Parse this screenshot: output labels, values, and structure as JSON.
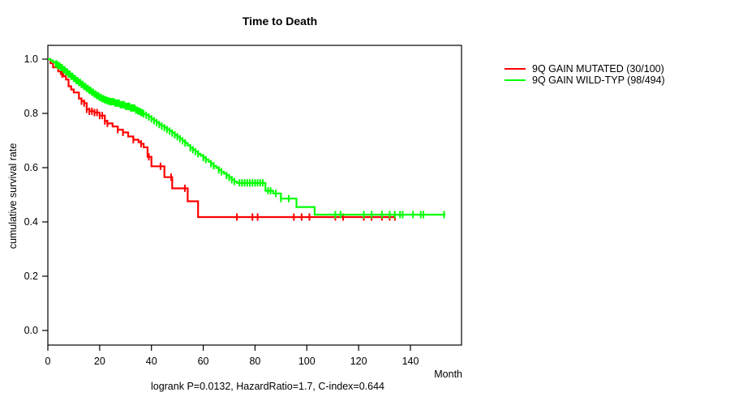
{
  "figure": {
    "title": "Time to Death",
    "footer": "logrank P=0.0132, HazardRatio=1.7, C-index=0.644"
  },
  "chart_data": {
    "type": "line",
    "subtype": "kaplan-meier-step",
    "title": "Time to Death",
    "xlabel": "Month",
    "ylabel": "cumulative survival rate",
    "xlim": [
      0,
      160
    ],
    "ylim": [
      0,
      1.05
    ],
    "x_ticks": [
      0,
      20,
      40,
      60,
      80,
      100,
      120,
      140
    ],
    "y_ticks": [
      1.0,
      0.8,
      0.6,
      0.4,
      0.2,
      0.0
    ],
    "grid": false,
    "legend_position": "right-outside",
    "annotation": "logrank P=0.0132, HazardRatio=1.7, C-index=0.644",
    "axis_color": "#000000",
    "series": [
      {
        "name": "9Q GAIN MUTATED (30/100)",
        "color": "#ff0000",
        "steps": [
          [
            0,
            1.0
          ],
          [
            1,
            0.985
          ],
          [
            2,
            0.97
          ],
          [
            4,
            0.955
          ],
          [
            5,
            0.945
          ],
          [
            6,
            0.937
          ],
          [
            7,
            0.925
          ],
          [
            8,
            0.9
          ],
          [
            9,
            0.888
          ],
          [
            10,
            0.877
          ],
          [
            12,
            0.855
          ],
          [
            13,
            0.845
          ],
          [
            14,
            0.838
          ],
          [
            15,
            0.815
          ],
          [
            16,
            0.808
          ],
          [
            18,
            0.803
          ],
          [
            20,
            0.792
          ],
          [
            22,
            0.772
          ],
          [
            23,
            0.763
          ],
          [
            25,
            0.752
          ],
          [
            27,
            0.74
          ],
          [
            29,
            0.73
          ],
          [
            31,
            0.715
          ],
          [
            33,
            0.703
          ],
          [
            35,
            0.694
          ],
          [
            36,
            0.688
          ],
          [
            37,
            0.675
          ],
          [
            38.5,
            0.64
          ],
          [
            40,
            0.605
          ],
          [
            45,
            0.565
          ],
          [
            48,
            0.524
          ],
          [
            54,
            0.476
          ],
          [
            58,
            0.418
          ]
        ],
        "end_time": 134,
        "censor_times": [
          5.5,
          13,
          14,
          15,
          16,
          17,
          18,
          19,
          20,
          21,
          22,
          23,
          27,
          29,
          33,
          36,
          39,
          43.5,
          47.6,
          52.9,
          73,
          79,
          81,
          95,
          98,
          101,
          111,
          114,
          122,
          125,
          129,
          132,
          134
        ]
      },
      {
        "name": "9Q GAIN WILD-TYP (98/494)",
        "color": "#00ff00",
        "steps": [
          [
            0,
            1.0
          ],
          [
            1,
            0.995
          ],
          [
            2,
            0.988
          ],
          [
            3,
            0.982
          ],
          [
            4,
            0.976
          ],
          [
            5,
            0.969
          ],
          [
            6,
            0.961
          ],
          [
            7,
            0.953
          ],
          [
            8,
            0.945
          ],
          [
            9,
            0.937
          ],
          [
            10,
            0.929
          ],
          [
            11,
            0.921
          ],
          [
            12,
            0.914
          ],
          [
            13,
            0.907
          ],
          [
            14,
            0.899
          ],
          [
            15,
            0.892
          ],
          [
            16,
            0.885
          ],
          [
            17,
            0.878
          ],
          [
            18,
            0.871
          ],
          [
            19,
            0.865
          ],
          [
            20,
            0.859
          ],
          [
            21,
            0.854
          ],
          [
            22,
            0.85
          ],
          [
            23,
            0.846
          ],
          [
            24,
            0.843
          ],
          [
            26,
            0.838
          ],
          [
            28,
            0.832
          ],
          [
            30,
            0.826
          ],
          [
            32,
            0.82
          ],
          [
            34,
            0.812
          ],
          [
            35,
            0.808
          ],
          [
            36,
            0.803
          ],
          [
            37,
            0.798
          ],
          [
            38,
            0.793
          ],
          [
            39,
            0.787
          ],
          [
            40,
            0.78
          ],
          [
            41,
            0.773
          ],
          [
            42,
            0.766
          ],
          [
            43,
            0.759
          ],
          [
            44,
            0.753
          ],
          [
            45,
            0.747
          ],
          [
            46,
            0.741
          ],
          [
            47,
            0.735
          ],
          [
            48,
            0.728
          ],
          [
            49,
            0.721
          ],
          [
            50,
            0.714
          ],
          [
            51,
            0.707
          ],
          [
            52,
            0.699
          ],
          [
            53,
            0.691
          ],
          [
            54,
            0.682
          ],
          [
            55,
            0.673
          ],
          [
            56,
            0.666
          ],
          [
            57,
            0.659
          ],
          [
            58,
            0.651
          ],
          [
            59,
            0.644
          ],
          [
            60,
            0.637
          ],
          [
            61,
            0.63
          ],
          [
            62,
            0.622
          ],
          [
            63,
            0.615
          ],
          [
            64,
            0.607
          ],
          [
            65,
            0.599
          ],
          [
            66,
            0.592
          ],
          [
            67,
            0.585
          ],
          [
            68,
            0.578
          ],
          [
            69,
            0.571
          ],
          [
            70,
            0.564
          ],
          [
            71,
            0.556
          ],
          [
            72,
            0.549
          ],
          [
            73,
            0.544
          ],
          [
            84,
            0.515
          ],
          [
            87,
            0.505
          ],
          [
            90,
            0.486
          ],
          [
            96,
            0.455
          ],
          [
            103,
            0.427
          ]
        ],
        "end_time": 153.5,
        "censor_times": [
          3,
          3.5,
          4,
          4.5,
          5,
          5.5,
          6,
          6.5,
          7,
          7.5,
          8,
          8.5,
          9,
          9.5,
          10,
          10.5,
          11,
          11.5,
          12,
          12.5,
          13,
          13.5,
          14,
          14.5,
          15,
          15.5,
          16,
          16.5,
          17,
          17.5,
          18,
          18.5,
          19,
          19.5,
          20,
          20.5,
          21,
          21.5,
          22,
          22.5,
          23,
          23.5,
          24,
          24.5,
          25,
          25.5,
          26,
          26.5,
          27,
          27.5,
          28,
          28.5,
          29,
          29.5,
          30,
          30.5,
          31,
          31.5,
          32,
          32.5,
          33,
          33.5,
          34,
          34.5,
          35,
          35.5,
          36,
          36.5,
          37,
          38,
          39,
          40,
          41,
          42,
          43,
          44,
          45,
          46,
          47,
          48,
          49,
          50,
          51,
          52,
          53,
          55,
          56,
          57,
          58,
          60,
          61,
          63,
          64,
          66,
          67,
          69,
          70,
          71,
          72,
          74,
          75,
          76,
          77,
          78,
          79,
          80,
          81,
          82,
          83,
          85,
          86,
          88,
          90,
          93,
          111,
          113,
          122,
          125,
          129,
          132,
          134,
          136,
          137,
          141,
          144,
          145,
          153
        ]
      }
    ]
  }
}
